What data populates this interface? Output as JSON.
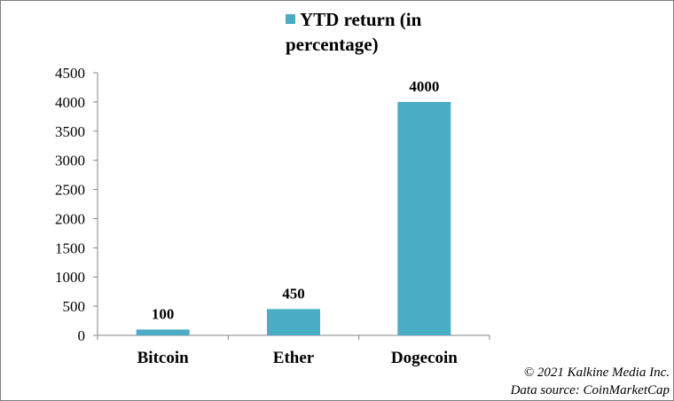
{
  "chart_data": {
    "type": "bar",
    "categories": [
      "Bitcoin",
      "Ether",
      "Dogecoin"
    ],
    "series": [
      {
        "name": "YTD return (in percentage)",
        "values": [
          100,
          450,
          4000
        ],
        "color": "#4bacc6"
      }
    ],
    "data_labels": [
      "100",
      "450",
      "4000"
    ],
    "ylim": [
      0,
      4500
    ],
    "yticks": [
      0,
      500,
      1000,
      1500,
      2000,
      2500,
      3000,
      3500,
      4000,
      4500
    ],
    "legend_position": "top",
    "grid": false
  },
  "credits": {
    "copyright": "© 2021 Kalkine Media Inc.",
    "source": "Data source: CoinMarketCap"
  }
}
